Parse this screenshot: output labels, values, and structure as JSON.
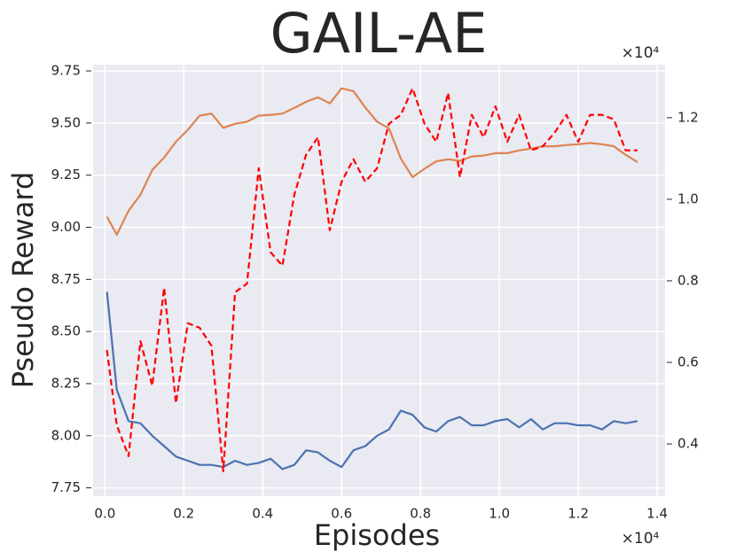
{
  "chart_data": {
    "type": "line",
    "title": "GAIL-AE",
    "x_label": "Episodes",
    "y_label": "Pseudo Reward",
    "x_offset_label": "×10⁴",
    "y2_offset_label": "×10⁴",
    "x": [
      0.005,
      0.03,
      0.06,
      0.09,
      0.12,
      0.15,
      0.18,
      0.21,
      0.24,
      0.27,
      0.3,
      0.33,
      0.36,
      0.39,
      0.42,
      0.45,
      0.48,
      0.51,
      0.54,
      0.57,
      0.6,
      0.63,
      0.66,
      0.69,
      0.72,
      0.75,
      0.78,
      0.81,
      0.84,
      0.87,
      0.9,
      0.93,
      0.96,
      0.99,
      1.02,
      1.05,
      1.08,
      1.11,
      1.14,
      1.17,
      1.2,
      1.23,
      1.26,
      1.29,
      1.32,
      1.35
    ],
    "series": [
      {
        "color": "#4c72b0",
        "dash": false,
        "axis": "y",
        "values": [
          8.69,
          8.22,
          8.07,
          8.06,
          8.0,
          7.95,
          7.9,
          7.88,
          7.86,
          7.86,
          7.85,
          7.88,
          7.86,
          7.87,
          7.89,
          7.84,
          7.86,
          7.93,
          7.92,
          7.88,
          7.85,
          7.93,
          7.95,
          8.0,
          8.03,
          8.12,
          8.1,
          8.04,
          8.02,
          8.07,
          8.09,
          8.05,
          8.05,
          8.07,
          8.08,
          8.04,
          8.08,
          8.03,
          8.06,
          8.06,
          8.05,
          8.05,
          8.03,
          8.07,
          8.06,
          8.07
        ]
      },
      {
        "color": "#dd8452",
        "dash": false,
        "axis": "y2",
        "values": [
          0.957,
          0.913,
          0.972,
          1.011,
          1.072,
          1.102,
          1.141,
          1.17,
          1.205,
          1.21,
          1.175,
          1.185,
          1.19,
          1.205,
          1.207,
          1.21,
          1.224,
          1.239,
          1.25,
          1.235,
          1.272,
          1.265,
          1.225,
          1.19,
          1.174,
          1.1,
          1.054,
          1.075,
          1.093,
          1.098,
          1.094,
          1.105,
          1.107,
          1.113,
          1.113,
          1.12,
          1.124,
          1.13,
          1.13,
          1.133,
          1.135,
          1.138,
          1.135,
          1.13,
          1.109,
          1.091
        ]
      },
      {
        "color": "#ff0000",
        "dash": true,
        "axis": "y2",
        "values": [
          0.63,
          0.446,
          0.37,
          0.652,
          0.543,
          0.783,
          0.5,
          0.696,
          0.685,
          0.641,
          0.333,
          0.772,
          0.793,
          1.076,
          0.87,
          0.837,
          1.011,
          1.109,
          1.152,
          0.924,
          1.043,
          1.098,
          1.043,
          1.076,
          1.185,
          1.207,
          1.272,
          1.185,
          1.141,
          1.261,
          1.054,
          1.207,
          1.152,
          1.228,
          1.141,
          1.207,
          1.12,
          1.13,
          1.163,
          1.207,
          1.141,
          1.207,
          1.207,
          1.196,
          1.12,
          1.12
        ]
      }
    ],
    "xlim": [
      -0.03,
      1.42
    ],
    "xticks": [
      {
        "value": 0,
        "label": "0.0"
      },
      0.2,
      0.4,
      0.6,
      0.8,
      {
        "value": 1,
        "label": "1.0"
      },
      1.2,
      1.4
    ],
    "ylim": [
      7.71,
      9.78
    ],
    "yticks": [
      7.75,
      {
        "value": 8,
        "label": "8.00"
      },
      8.25,
      {
        "value": 8.5,
        "label": "8.50"
      },
      8.75,
      {
        "value": 9,
        "label": "9.00"
      },
      9.25,
      {
        "value": 9.5,
        "label": "9.50"
      },
      9.75
    ],
    "y2lim": [
      0.272,
      1.33
    ],
    "y2ticks": [
      0.4,
      0.6,
      0.8,
      {
        "value": 1,
        "label": "1.0"
      },
      1.2
    ],
    "grid": true,
    "background": "#eaeaf2"
  }
}
